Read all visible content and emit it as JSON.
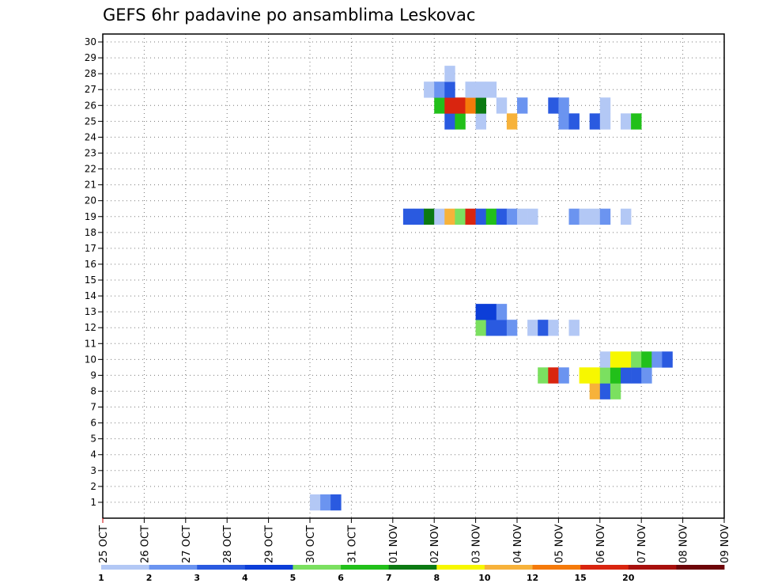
{
  "chart_data": {
    "type": "heatmap",
    "title": "GEFS 6hr padavine po ansamblima Leskovac",
    "xlabel": "",
    "ylabel": "",
    "x_tick_labels": [
      "25 OCT",
      "26 OCT",
      "27 OCT",
      "28 OCT",
      "29 OCT",
      "30 OCT",
      "31 OCT",
      "01 NOV",
      "02 NOV",
      "03 NOV",
      "04 NOV",
      "05 NOV",
      "06 NOV",
      "07 NOV",
      "08 NOV",
      "09 NOV"
    ],
    "y_ticks": [
      1,
      2,
      3,
      4,
      5,
      6,
      7,
      8,
      9,
      10,
      11,
      12,
      13,
      14,
      15,
      16,
      17,
      18,
      19,
      20,
      21,
      22,
      23,
      24,
      25,
      26,
      27,
      28,
      29,
      30
    ],
    "y_range": [
      0,
      30
    ],
    "x_range_days": [
      0,
      15
    ],
    "time_step_hours": 6,
    "grid": "dotted",
    "legend_position": "bottom",
    "legend": {
      "labels": [
        "1",
        "2",
        "3",
        "4",
        "5",
        "6",
        "7",
        "8",
        "10",
        "12",
        "15",
        "20"
      ],
      "colors": [
        "#b3c8f5",
        "#6b94f0",
        "#2a5ae0",
        "#0c3ed8",
        "#7be060",
        "#22c01a",
        "#0c7a12",
        "#f7f700",
        "#f7b23a",
        "#f57a0a",
        "#d9250f",
        "#a8100d",
        "#6e0509"
      ]
    },
    "cells": [
      {
        "m": 0,
        "t": 20,
        "c": 0
      },
      {
        "m": 0,
        "t": 21,
        "c": 1
      },
      {
        "m": 0,
        "t": 22,
        "c": 2
      },
      {
        "m": 8,
        "t": 42,
        "c": 4
      },
      {
        "m": 8,
        "t": 43,
        "c": 10
      },
      {
        "m": 8,
        "t": 44,
        "c": 1
      },
      {
        "m": 7,
        "t": 47,
        "c": 8
      },
      {
        "m": 7,
        "t": 48,
        "c": 2
      },
      {
        "m": 7,
        "t": 49,
        "c": 4
      },
      {
        "m": 8,
        "t": 46,
        "c": 7
      },
      {
        "m": 8,
        "t": 47,
        "c": 7
      },
      {
        "m": 8,
        "t": 48,
        "c": 4
      },
      {
        "m": 8,
        "t": 49,
        "c": 5
      },
      {
        "m": 8,
        "t": 50,
        "c": 2
      },
      {
        "m": 8,
        "t": 51,
        "c": 2
      },
      {
        "m": 8,
        "t": 52,
        "c": 1
      },
      {
        "m": 9,
        "t": 48,
        "c": 0
      },
      {
        "m": 9,
        "t": 49,
        "c": 7
      },
      {
        "m": 9,
        "t": 50,
        "c": 7
      },
      {
        "m": 9,
        "t": 51,
        "c": 4
      },
      {
        "m": 9,
        "t": 52,
        "c": 5
      },
      {
        "m": 9,
        "t": 53,
        "c": 1
      },
      {
        "m": 9,
        "t": 54,
        "c": 2
      },
      {
        "m": 11,
        "t": 36,
        "c": 4
      },
      {
        "m": 11,
        "t": 37,
        "c": 2
      },
      {
        "m": 11,
        "t": 38,
        "c": 2
      },
      {
        "m": 11,
        "t": 39,
        "c": 1
      },
      {
        "m": 11,
        "t": 41,
        "c": 0
      },
      {
        "m": 11,
        "t": 42,
        "c": 2
      },
      {
        "m": 11,
        "t": 43,
        "c": 0
      },
      {
        "m": 11,
        "t": 45,
        "c": 0
      },
      {
        "m": 12,
        "t": 36,
        "c": 3
      },
      {
        "m": 12,
        "t": 37,
        "c": 3
      },
      {
        "m": 12,
        "t": 38,
        "c": 1
      },
      {
        "m": 18,
        "t": 29,
        "c": 2
      },
      {
        "m": 18,
        "t": 30,
        "c": 2
      },
      {
        "m": 18,
        "t": 31,
        "c": 6
      },
      {
        "m": 18,
        "t": 32,
        "c": 0
      },
      {
        "m": 18,
        "t": 33,
        "c": 8
      },
      {
        "m": 18,
        "t": 34,
        "c": 4
      },
      {
        "m": 18,
        "t": 35,
        "c": 10
      },
      {
        "m": 18,
        "t": 36,
        "c": 2
      },
      {
        "m": 18,
        "t": 37,
        "c": 5
      },
      {
        "m": 18,
        "t": 38,
        "c": 2
      },
      {
        "m": 18,
        "t": 39,
        "c": 1
      },
      {
        "m": 18,
        "t": 40,
        "c": 0
      },
      {
        "m": 18,
        "t": 41,
        "c": 0
      },
      {
        "m": 18,
        "t": 45,
        "c": 1
      },
      {
        "m": 18,
        "t": 46,
        "c": 0
      },
      {
        "m": 18,
        "t": 47,
        "c": 0
      },
      {
        "m": 18,
        "t": 48,
        "c": 1
      },
      {
        "m": 18,
        "t": 50,
        "c": 0
      },
      {
        "m": 24,
        "t": 33,
        "c": 2
      },
      {
        "m": 24,
        "t": 34,
        "c": 5
      },
      {
        "m": 24,
        "t": 36,
        "c": 0
      },
      {
        "m": 24,
        "t": 39,
        "c": 8
      },
      {
        "m": 24,
        "t": 44,
        "c": 1
      },
      {
        "m": 24,
        "t": 45,
        "c": 2
      },
      {
        "m": 24,
        "t": 47,
        "c": 2
      },
      {
        "m": 24,
        "t": 48,
        "c": 0
      },
      {
        "m": 24,
        "t": 50,
        "c": 0
      },
      {
        "m": 24,
        "t": 51,
        "c": 5
      },
      {
        "m": 25,
        "t": 32,
        "c": 5
      },
      {
        "m": 25,
        "t": 33,
        "c": 10
      },
      {
        "m": 25,
        "t": 34,
        "c": 10
      },
      {
        "m": 25,
        "t": 35,
        "c": 9
      },
      {
        "m": 25,
        "t": 36,
        "c": 6
      },
      {
        "m": 25,
        "t": 38,
        "c": 0
      },
      {
        "m": 25,
        "t": 40,
        "c": 1
      },
      {
        "m": 25,
        "t": 43,
        "c": 2
      },
      {
        "m": 25,
        "t": 44,
        "c": 1
      },
      {
        "m": 25,
        "t": 48,
        "c": 0
      },
      {
        "m": 26,
        "t": 31,
        "c": 0
      },
      {
        "m": 26,
        "t": 32,
        "c": 1
      },
      {
        "m": 26,
        "t": 33,
        "c": 2
      },
      {
        "m": 26,
        "t": 35,
        "c": 0
      },
      {
        "m": 26,
        "t": 36,
        "c": 0
      },
      {
        "m": 26,
        "t": 37,
        "c": 0
      },
      {
        "m": 27,
        "t": 33,
        "c": 0
      }
    ]
  }
}
